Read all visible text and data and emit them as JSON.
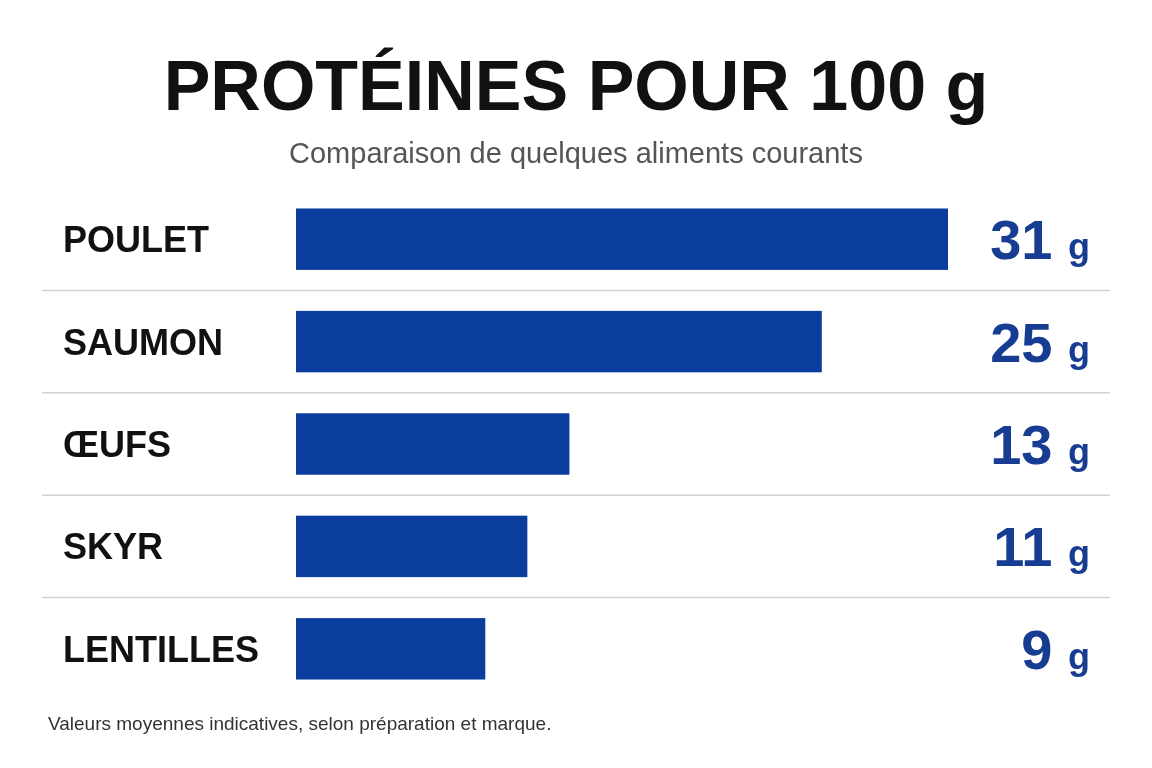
{
  "chart_data": {
    "type": "bar",
    "orientation": "horizontal",
    "title": "PROTÉINES POUR 100 g",
    "subtitle": "Comparaison de quelques aliments courants",
    "categories": [
      "POULET",
      "SAUMON",
      "ŒUFS",
      "SKYR",
      "LENTILLES"
    ],
    "values": [
      31,
      25,
      13,
      11,
      9
    ],
    "value_labels": [
      "31 g",
      "25 g",
      "13 g",
      "11 g",
      "9 g"
    ],
    "color": "#0b3d9e",
    "grid": "y",
    "annotations": [
      "Valeurs moyennes indicatives, selon préparation et marque."
    ]
  }
}
